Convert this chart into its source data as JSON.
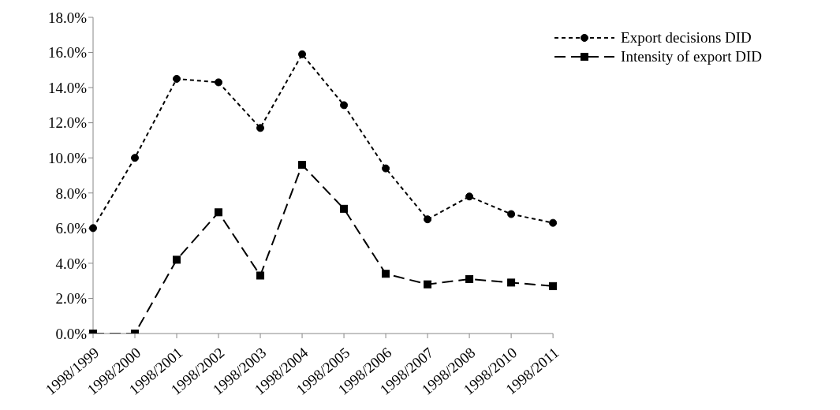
{
  "chart_data": {
    "type": "line",
    "categories": [
      "1998/1999",
      "1998/2000",
      "1998/2001",
      "1998/2002",
      "1998/2003",
      "1998/2004",
      "1998/2005",
      "1998/2006",
      "1998/2007",
      "1998/2008",
      "1998/2010",
      "1998/2011"
    ],
    "series": [
      {
        "name": "Export decisions DID",
        "color": "#000000",
        "marker": "circle",
        "line_style": "dotted",
        "values": [
          6.0,
          10.0,
          14.5,
          14.3,
          11.7,
          15.9,
          13.0,
          9.4,
          6.5,
          7.8,
          6.8,
          6.3
        ]
      },
      {
        "name": "Intensity of export DID",
        "color": "#000000",
        "marker": "square",
        "line_style": "dashed",
        "values": [
          0.0,
          0.0,
          4.2,
          6.9,
          3.3,
          9.6,
          7.1,
          3.4,
          2.8,
          3.1,
          2.9,
          2.7
        ]
      }
    ],
    "ylim": [
      0,
      18
    ],
    "yticks": [
      {
        "value": 0,
        "label": "0.0%"
      },
      {
        "value": 2,
        "label": "2.0%"
      },
      {
        "value": 4,
        "label": "4.0%"
      },
      {
        "value": 6,
        "label": "6.0%"
      },
      {
        "value": 8,
        "label": "8.0%"
      },
      {
        "value": 10,
        "label": "10.0%"
      },
      {
        "value": 12,
        "label": "12.0%"
      },
      {
        "value": 14,
        "label": "14.0%"
      },
      {
        "value": 16,
        "label": "16.0%"
      },
      {
        "value": 18,
        "label": "18.0%"
      }
    ],
    "grid": false,
    "legend": "top right"
  }
}
